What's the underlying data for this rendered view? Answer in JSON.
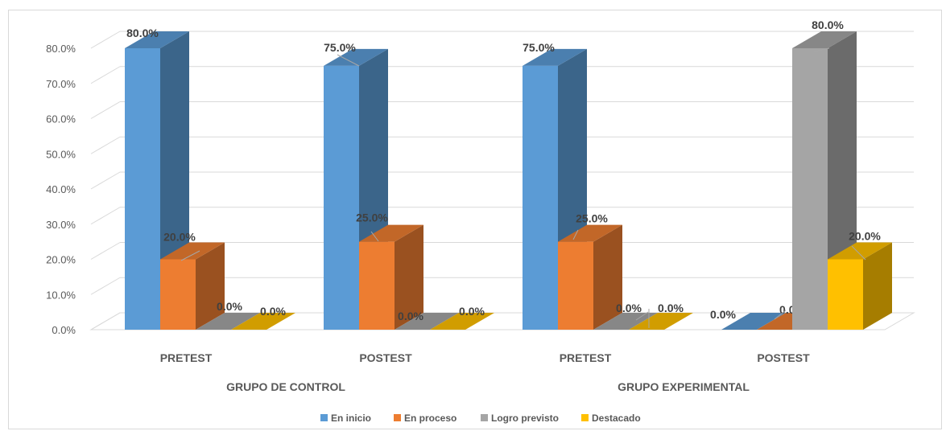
{
  "chart_data": {
    "type": "bar",
    "categories": [
      "PRETEST",
      "POSTEST",
      "PRETEST",
      "POSTEST"
    ],
    "groups": [
      {
        "label": "GRUPO DE CONTROL",
        "categories": [
          0,
          1
        ]
      },
      {
        "label": "GRUPO EXPERIMENTAL",
        "categories": [
          2,
          3
        ]
      }
    ],
    "series": [
      {
        "name": "En inicio",
        "color": "#5B9BD5",
        "values": [
          80.0,
          75.0,
          75.0,
          0.0
        ]
      },
      {
        "name": "En proceso",
        "color": "#ED7D31",
        "values": [
          20.0,
          25.0,
          25.0,
          0.0
        ]
      },
      {
        "name": "Logro previsto",
        "color": "#A5A5A5",
        "values": [
          0.0,
          0.0,
          0.0,
          80.0
        ]
      },
      {
        "name": "Destacado",
        "color": "#FFC000",
        "values": [
          0.0,
          0.0,
          0.0,
          20.0
        ]
      }
    ],
    "data_labels": [
      [
        "80.0%",
        "20.0%",
        "0.0%",
        "0.0%"
      ],
      [
        "75.0%",
        "25.0%",
        "0.0%",
        "0.0%"
      ],
      [
        "75.0%",
        "25.0%",
        "0.0%",
        "0.0%"
      ],
      [
        "0.0%",
        "0.0%",
        "80.0%",
        "20.0%"
      ]
    ],
    "y_ticks": [
      "0.0%",
      "10.0%",
      "20.0%",
      "30.0%",
      "40.0%",
      "50.0%",
      "60.0%",
      "70.0%",
      "80.0%"
    ],
    "ylim": [
      0,
      80
    ],
    "grid": true,
    "legend_position": "bottom",
    "three_d": true
  }
}
